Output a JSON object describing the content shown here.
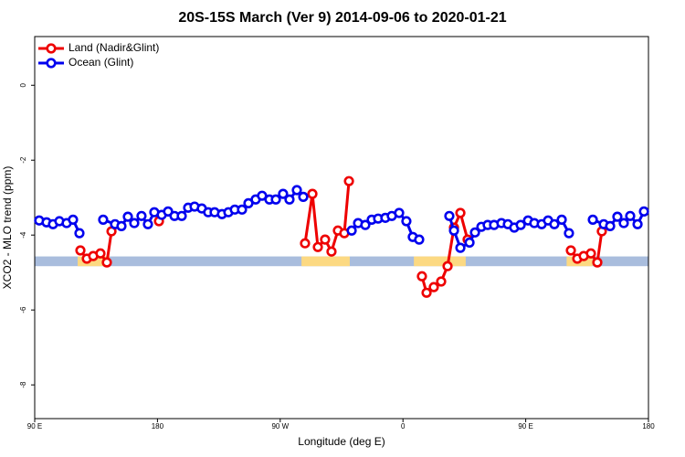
{
  "chart_data": {
    "type": "line",
    "title": "20S-15S March (Ver 9)   2014-09-06 to 2020-01-21",
    "x_label": "Longitude (deg E)",
    "y_label": "XCO2 - MLO trend (ppm)",
    "xlim": [
      90,
      540
    ],
    "xticks": [
      {
        "value": 90,
        "label": "90 E"
      },
      180,
      {
        "value": 270,
        "label": "90 W"
      },
      {
        "value": 360,
        "label": "0"
      },
      {
        "value": 450,
        "label": "90 E"
      },
      {
        "value": 540,
        "label": "180"
      }
    ],
    "ylim": [
      -8.9,
      1.3
    ],
    "yticks": [
      0,
      -2,
      -4,
      -6,
      -8
    ],
    "legend": "top-left",
    "band": {
      "ylim": [
        -4.57,
        -4.83
      ],
      "ocean_color": "#a9bddd",
      "land_color": "#fcd982",
      "land": [
        [
          121.5,
          145
        ],
        [
          285.6,
          321
        ],
        [
          368,
          406
        ],
        [
          480,
          499
        ]
      ]
    },
    "series": [
      {
        "name": "Land (Nadir&Glint)",
        "color": "#ee0000",
        "x": [
          123.5,
          128.2,
          132.9,
          138.2,
          142.9,
          146.3,
          null,
          181.1,
          null,
          288.2,
          293.6,
          297.6,
          302.9,
          307.6,
          312.3,
          317,
          320.4,
          null,
          373.9,
          377.3,
          382.6,
          388,
          392.7,
          397.4,
          402.1,
          407.4,
          null,
          483.1,
          487.8,
          492.5,
          497.8,
          502.5,
          505.8
        ],
        "values": [
          -4.41,
          -4.63,
          -4.56,
          -4.49,
          -4.73,
          -3.9,
          null,
          -3.63,
          null,
          -4.22,
          -2.9,
          -4.32,
          -4.12,
          -4.44,
          -3.88,
          -3.95,
          -2.56,
          null,
          -5.1,
          -5.54,
          -5.39,
          -5.24,
          -4.83,
          -3.8,
          -3.41,
          -4.12,
          null,
          -4.41,
          -4.63,
          -4.56,
          -4.49,
          -4.73,
          -3.9
        ]
      },
      {
        "name": "Ocean (Glint)",
        "color": "#0000ee",
        "x": [
          93.3,
          98.7,
          103.4,
          108.1,
          113.4,
          118.1,
          122.8,
          null,
          140.2,
          148.9,
          153.6,
          158.3,
          163,
          168.3,
          173,
          177.7,
          183.1,
          187.8,
          192.5,
          197.8,
          202.5,
          207.2,
          212.5,
          217.2,
          221.9,
          227.3,
          232,
          236.7,
          242,
          246.7,
          252,
          256.7,
          262.1,
          266.8,
          272.1,
          276.8,
          282.2,
          286.9,
          null,
          322.4,
          327.1,
          332.4,
          337.1,
          341.8,
          347.1,
          351.8,
          357.2,
          362.5,
          367.2,
          371.9,
          null,
          394,
          397.4,
          402.1,
          408.8,
          412.8,
          417.5,
          422.1,
          426.8,
          432.2,
          436.9,
          441.6,
          446.3,
          451.7,
          456.3,
          461.7,
          466.4,
          471,
          476.4,
          481.7,
          null,
          499.2,
          507.2,
          511.9,
          517.2,
          521.9,
          526.6,
          532,
          536.7
        ],
        "values": [
          -3.61,
          -3.66,
          -3.71,
          -3.63,
          -3.68,
          -3.59,
          -3.95,
          null,
          -3.59,
          -3.71,
          -3.76,
          -3.51,
          -3.68,
          -3.49,
          -3.71,
          -3.39,
          -3.46,
          -3.37,
          -3.49,
          -3.49,
          -3.27,
          -3.24,
          -3.29,
          -3.39,
          -3.39,
          -3.44,
          -3.39,
          -3.32,
          -3.32,
          -3.15,
          -3.05,
          -2.95,
          -3.05,
          -3.05,
          -2.9,
          -3.05,
          -2.8,
          -2.98,
          null,
          -3.88,
          -3.68,
          -3.73,
          -3.59,
          -3.56,
          -3.54,
          -3.49,
          -3.41,
          -3.63,
          -4.05,
          -4.12,
          null,
          -3.49,
          -3.88,
          -4.34,
          -4.2,
          -3.93,
          -3.78,
          -3.73,
          -3.73,
          -3.68,
          -3.71,
          -3.8,
          -3.73,
          -3.61,
          -3.68,
          -3.71,
          -3.61,
          -3.71,
          -3.59,
          -3.95,
          null,
          -3.59,
          -3.71,
          -3.76,
          -3.51,
          -3.68,
          -3.49,
          -3.71,
          -3.37
        ]
      }
    ]
  }
}
